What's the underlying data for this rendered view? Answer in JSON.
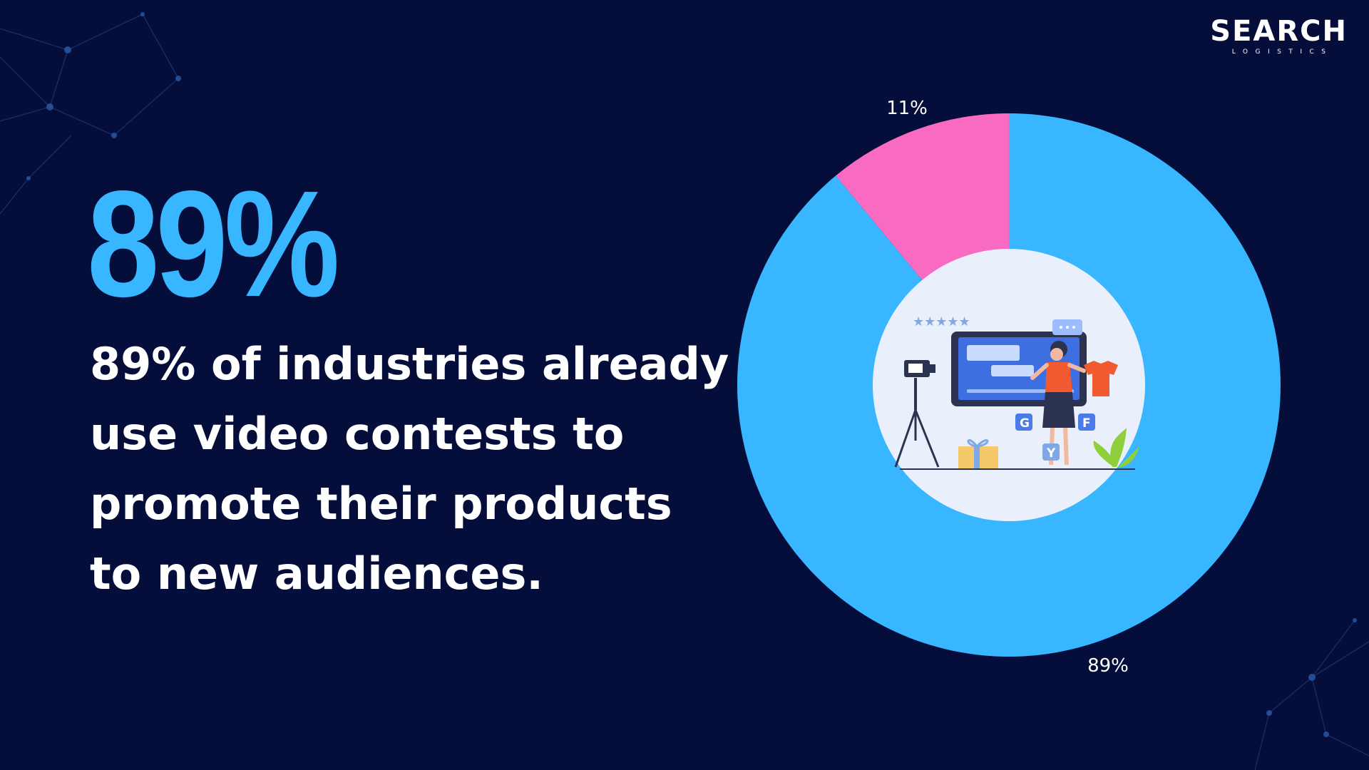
{
  "logo": {
    "name": "SEARCH",
    "subtitle": "LOGISTICS"
  },
  "headline": {
    "stat": "89%",
    "description_lines": [
      "89% of industries already",
      "use video contests to",
      "promote their products",
      "to new audiences."
    ]
  },
  "colors": {
    "background": "#050e3a",
    "accent": "#38b6ff",
    "minority": "#f96bc2",
    "text": "#ffffff",
    "center_disc": "#eaf0fb"
  },
  "chart_data": {
    "type": "pie",
    "donut": true,
    "slices": [
      {
        "value": 89,
        "label": "89%",
        "color": "#38b6ff"
      },
      {
        "value": 11,
        "label": "11%",
        "color": "#f96bc2"
      }
    ],
    "center_illustration": "video-influencer-illustration"
  }
}
